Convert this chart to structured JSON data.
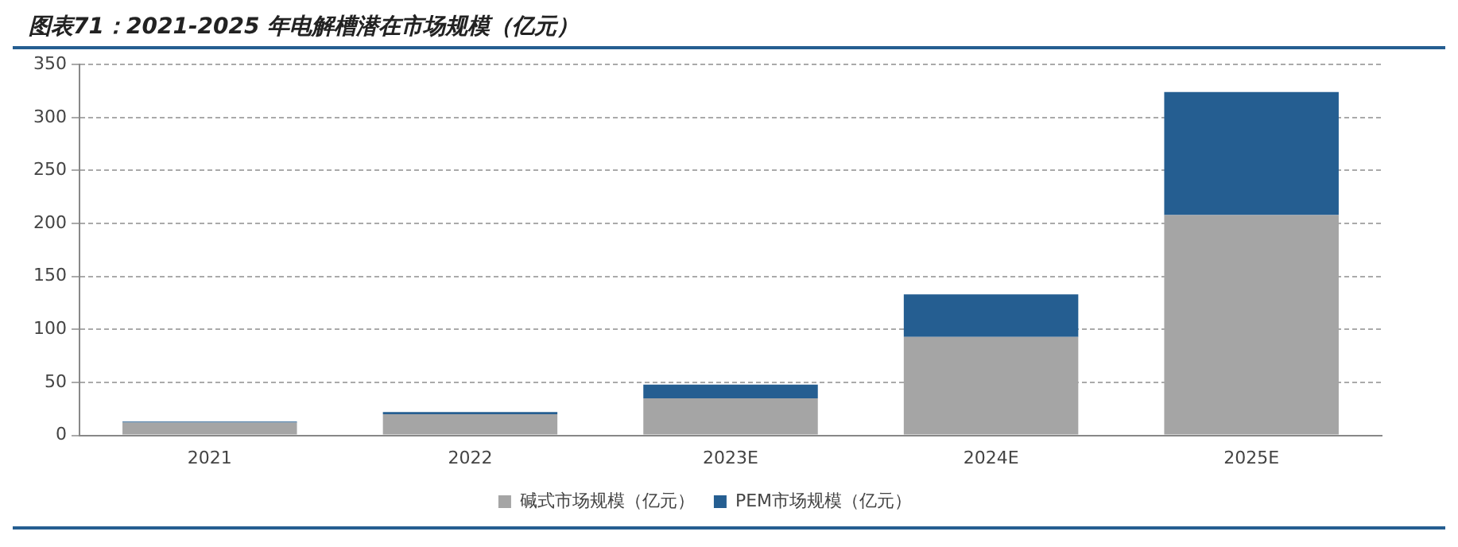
{
  "chart_data": {
    "type": "bar",
    "title": "图表71：2021-2025 年电解槽潜在市场规模（亿元）",
    "categories": [
      "2021",
      "2022",
      "2023E",
      "2024E",
      "2025E"
    ],
    "stacked": true,
    "series": [
      {
        "name": "碱式市场规模（亿元）",
        "color": "#a5a5a5",
        "values": [
          12,
          20,
          35,
          93,
          208
        ]
      },
      {
        "name": "PEM市场规模（亿元）",
        "color": "#255e91",
        "values": [
          1,
          2,
          13,
          40,
          116
        ]
      }
    ],
    "ylim": [
      0,
      350
    ],
    "yticks": [
      0,
      50,
      100,
      150,
      200,
      250,
      300,
      350
    ],
    "grid": "y",
    "legend": "bottom"
  }
}
